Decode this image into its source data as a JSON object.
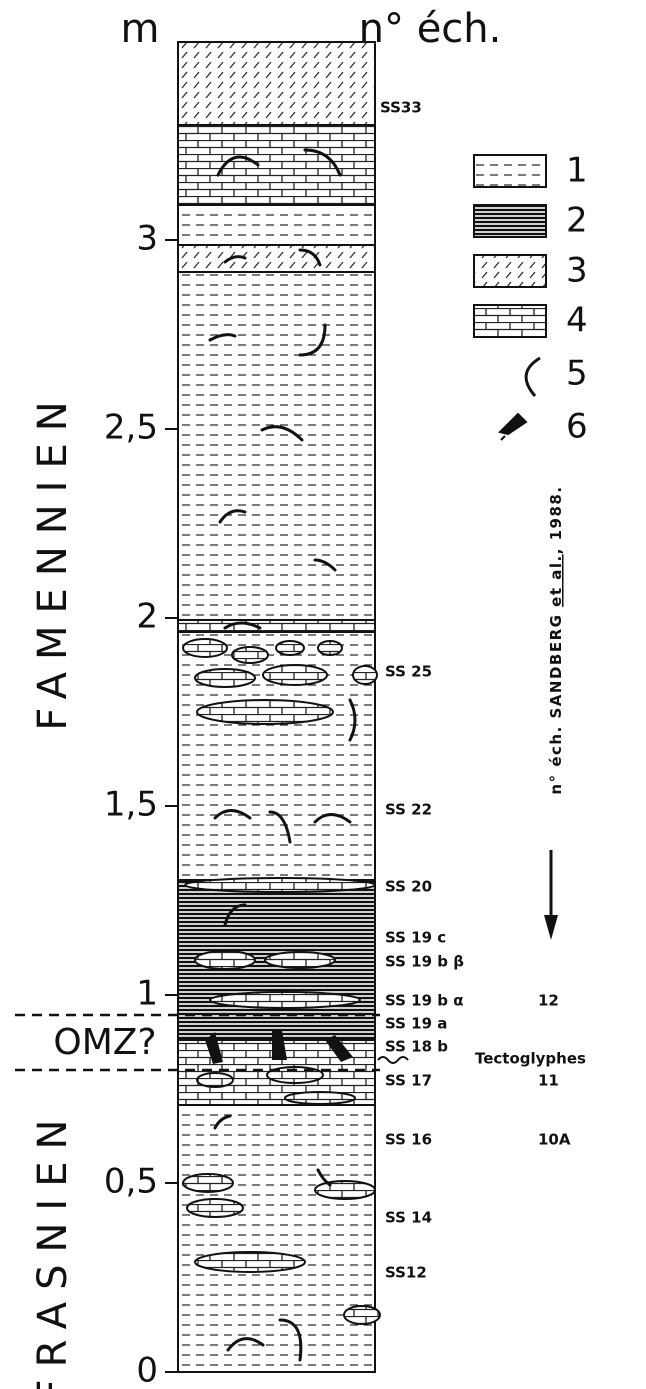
{
  "header": {
    "depth_unit": "m",
    "sample_heading": "n° éch."
  },
  "stages": [
    "FAMENNIEN",
    "FRASNIEN"
  ],
  "omz": "OMZ?",
  "scale": {
    "ticks": [
      "0",
      "0,5",
      "1",
      "1,5",
      "2",
      "2,5",
      "3"
    ]
  },
  "legend": [
    "1",
    "2",
    "3",
    "4",
    "5",
    "6"
  ],
  "samples": [
    "SS33",
    "SS 25",
    "SS 22",
    "SS 20",
    "SS 19 c",
    "SS 19 b β",
    "SS 19 b α",
    "SS 19 a",
    "SS 18 b",
    "SS 17",
    "SS 16",
    "SS 14",
    "SS12"
  ],
  "tectoglyphes": "Tectoglyphes",
  "sandberg": {
    "note_prefix": "n° éch. SANDBERG ",
    "note_authors": "et al.",
    "note_suffix": ", 1988.",
    "numbers": [
      "12",
      "11",
      "10A"
    ]
  }
}
